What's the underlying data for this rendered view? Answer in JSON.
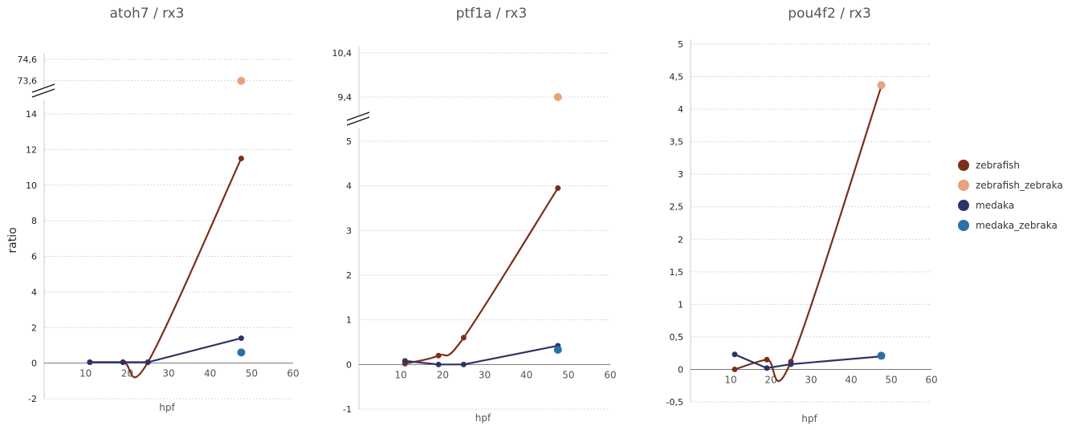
{
  "chart_data": [
    {
      "type": "line",
      "title": "atoh7 / rx3",
      "xlabel": "hpf",
      "ylabel": "ratio",
      "xlim": [
        0,
        60
      ],
      "x_ticks": [
        "10",
        "20",
        "30",
        "40",
        "50",
        "60"
      ],
      "ylim": [
        -2,
        14
      ],
      "y_ticks": [
        "-2",
        "0",
        "2",
        "4",
        "6",
        "8",
        "10",
        "12",
        "14"
      ],
      "break_ylim": [
        73.1,
        74.6
      ],
      "break_y_ticks": [
        "73,6",
        "74,6"
      ],
      "axis_break": true,
      "grid": "horizontal dashed",
      "series": [
        {
          "name": "zebrafish",
          "x": [
            11,
            19,
            25,
            47.5
          ],
          "y": [
            0.05,
            0.05,
            0.05,
            11.5
          ]
        },
        {
          "name": "zebrafish_zebraka",
          "x": [
            47.5
          ],
          "y": [
            73.6
          ]
        },
        {
          "name": "medaka",
          "x": [
            11,
            19,
            25,
            47.5
          ],
          "y": [
            0.05,
            0.05,
            0.05,
            1.4
          ]
        },
        {
          "name": "medaka_zebraka",
          "x": [
            47.5
          ],
          "y": [
            0.6
          ]
        }
      ]
    },
    {
      "type": "line",
      "title": "ptf1a / rx3",
      "xlabel": "hpf",
      "ylabel": "",
      "xlim": [
        0,
        60
      ],
      "x_ticks": [
        "10",
        "20",
        "30",
        "40",
        "50",
        "60"
      ],
      "ylim": [
        -1,
        5
      ],
      "y_ticks": [
        "-1",
        "0",
        "1",
        "2",
        "3",
        "4",
        "5"
      ],
      "break_ylim": [
        9.0,
        10.4
      ],
      "break_y_ticks": [
        "9,4",
        "10,4"
      ],
      "axis_break": true,
      "grid": "horizontal dashed",
      "series": [
        {
          "name": "zebrafish",
          "x": [
            11,
            19,
            25,
            47.5
          ],
          "y": [
            0.02,
            0.2,
            0.6,
            3.95
          ]
        },
        {
          "name": "zebrafish_zebraka",
          "x": [
            47.5
          ],
          "y": [
            9.4
          ]
        },
        {
          "name": "medaka",
          "x": [
            11,
            19,
            25,
            47.5
          ],
          "y": [
            0.08,
            0.0,
            0.0,
            0.42
          ]
        },
        {
          "name": "medaka_zebraka",
          "x": [
            47.5
          ],
          "y": [
            0.33
          ]
        }
      ]
    },
    {
      "type": "line",
      "title": "pou4f2 / rx3",
      "xlabel": "hpf",
      "ylabel": "",
      "xlim": [
        0,
        60
      ],
      "x_ticks": [
        "10",
        "20",
        "30",
        "40",
        "50",
        "60"
      ],
      "ylim": [
        -0.5,
        5
      ],
      "y_ticks": [
        "-0,5",
        "0",
        "0,5",
        "1",
        "1,5",
        "2",
        "2,5",
        "3",
        "3,5",
        "4",
        "4,5",
        "5"
      ],
      "axis_break": false,
      "grid": "horizontal dashed",
      "series": [
        {
          "name": "zebrafish",
          "x": [
            11,
            19,
            25,
            47.5
          ],
          "y": [
            0.0,
            0.15,
            0.12,
            4.35
          ]
        },
        {
          "name": "zebrafish_zebraka",
          "x": [
            47.5
          ],
          "y": [
            4.37
          ]
        },
        {
          "name": "medaka",
          "x": [
            11,
            19,
            25,
            47.5
          ],
          "y": [
            0.23,
            0.02,
            0.08,
            0.2
          ]
        },
        {
          "name": "medaka_zebraka",
          "x": [
            47.5
          ],
          "y": [
            0.21
          ]
        }
      ]
    }
  ],
  "legend": {
    "placement": "right",
    "items": [
      {
        "label": "zebrafish",
        "color": "#7b2e1a"
      },
      {
        "label": "zebrafish_zebraka",
        "color": "#e8a37c"
      },
      {
        "label": "medaka",
        "color": "#2e3466"
      },
      {
        "label": "medaka_zebraka",
        "color": "#2f6fa8"
      }
    ]
  }
}
